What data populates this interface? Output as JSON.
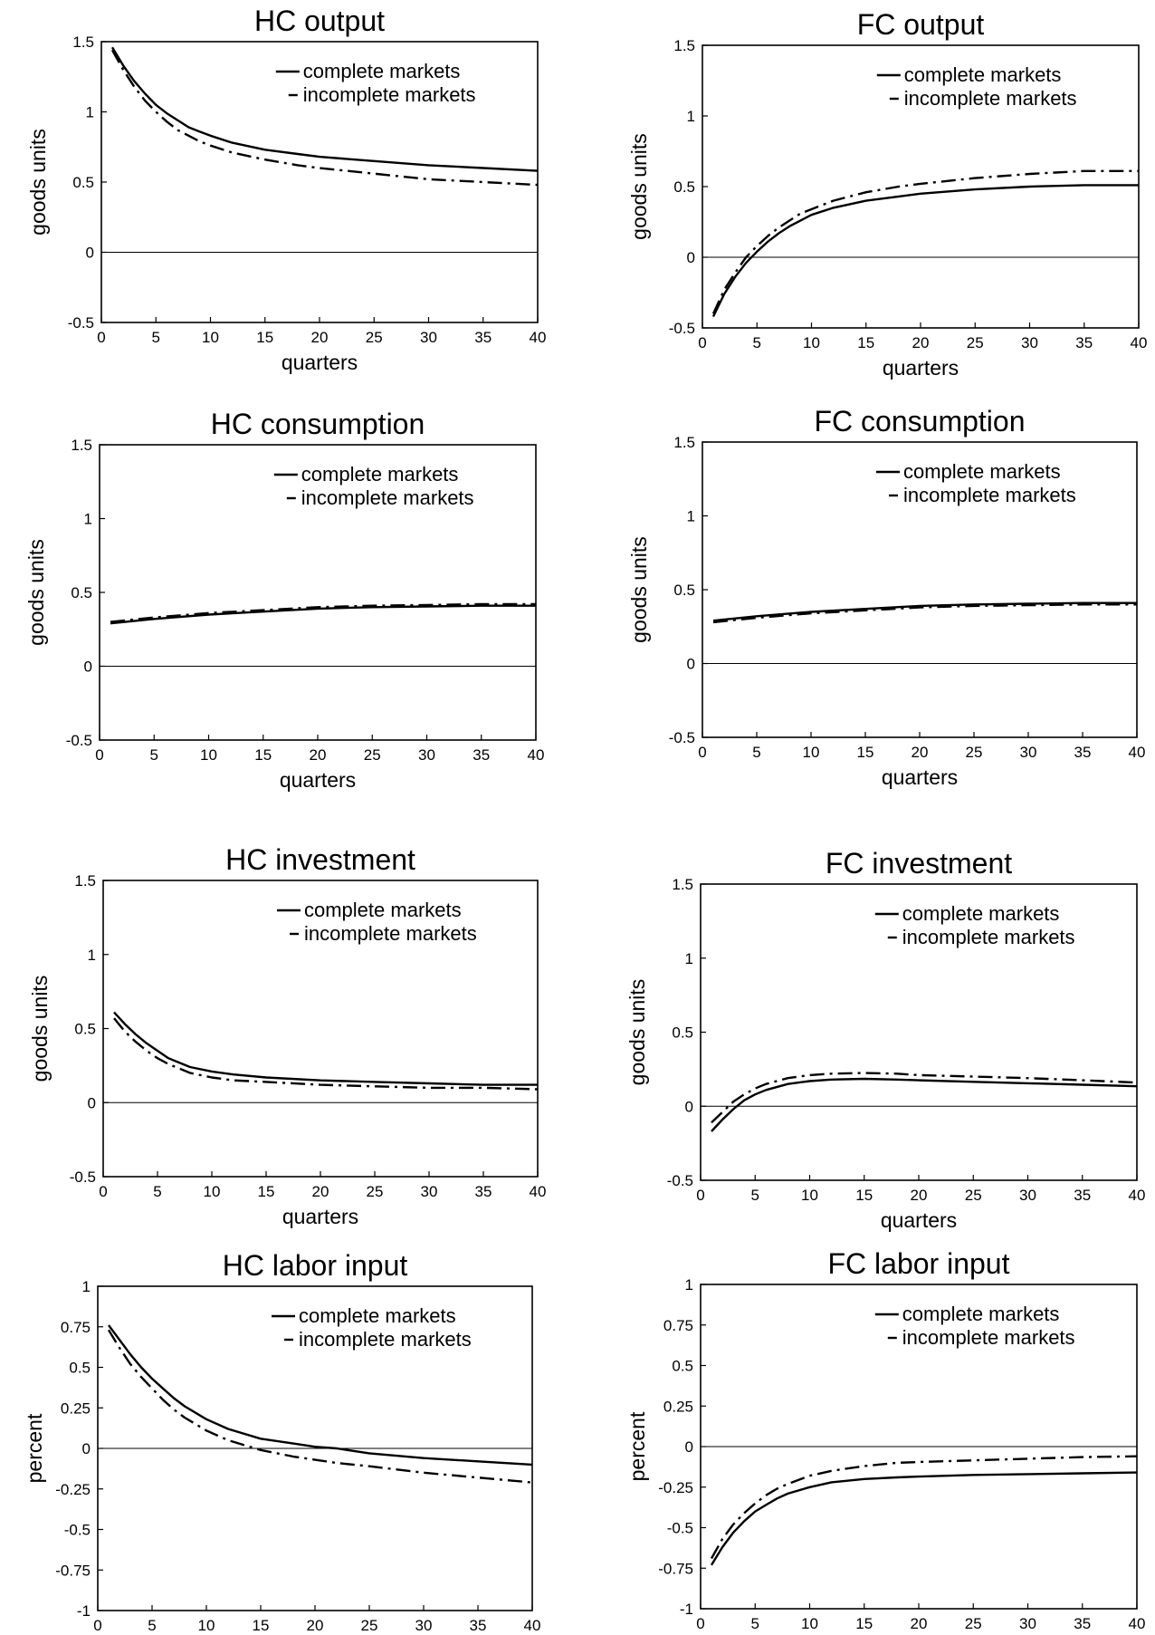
{
  "chart_data": [
    {
      "type": "line",
      "title": "HC output",
      "xlabel": "quarters",
      "ylabel": "goods units",
      "xlim": [
        0,
        40
      ],
      "ylim": [
        -0.5,
        1.5
      ],
      "xticks": [
        0,
        5,
        10,
        15,
        20,
        25,
        30,
        35,
        40
      ],
      "xtick_labels": [
        "0",
        "5",
        "10",
        "15",
        "20",
        "25",
        "30",
        "35",
        "40"
      ],
      "yticks": [
        -0.5,
        0,
        0.5,
        1,
        1.5
      ],
      "ytick_labels": [
        "-0.5",
        "0",
        "0.5",
        "1",
        "1.5"
      ],
      "zero_line": true,
      "grid": false,
      "legend_position": "top-right",
      "series": [
        {
          "name": "complete markets",
          "style": "solid",
          "x": [
            1,
            2,
            3,
            4,
            5,
            6,
            7,
            8,
            9,
            10,
            12,
            15,
            18,
            20,
            25,
            30,
            35,
            40
          ],
          "values": [
            1.46,
            1.33,
            1.22,
            1.13,
            1.05,
            0.99,
            0.94,
            0.89,
            0.86,
            0.83,
            0.78,
            0.73,
            0.7,
            0.68,
            0.65,
            0.62,
            0.6,
            0.58
          ]
        },
        {
          "name": "incomplete markets",
          "style": "dashdot",
          "x": [
            1,
            2,
            3,
            4,
            5,
            6,
            7,
            8,
            9,
            10,
            12,
            15,
            18,
            20,
            25,
            30,
            35,
            40
          ],
          "values": [
            1.44,
            1.3,
            1.18,
            1.08,
            1.0,
            0.93,
            0.87,
            0.83,
            0.79,
            0.76,
            0.71,
            0.66,
            0.62,
            0.6,
            0.56,
            0.52,
            0.5,
            0.48
          ]
        }
      ]
    },
    {
      "type": "line",
      "title": "FC output",
      "xlabel": "quarters",
      "ylabel": "goods units",
      "xlim": [
        0,
        40
      ],
      "ylim": [
        -0.5,
        1.5
      ],
      "xticks": [
        0,
        5,
        10,
        15,
        20,
        25,
        30,
        35,
        40
      ],
      "xtick_labels": [
        "0",
        "5",
        "10",
        "15",
        "20",
        "25",
        "30",
        "35",
        "40"
      ],
      "yticks": [
        -0.5,
        0,
        0.5,
        1,
        1.5
      ],
      "ytick_labels": [
        "-0.5",
        "0",
        "0.5",
        "1",
        "1.5"
      ],
      "zero_line": true,
      "grid": false,
      "legend_position": "top-right",
      "series": [
        {
          "name": "complete markets",
          "style": "solid",
          "x": [
            1,
            2,
            3,
            4,
            5,
            6,
            7,
            8,
            9,
            10,
            12,
            15,
            18,
            20,
            25,
            30,
            35,
            40
          ],
          "values": [
            -0.42,
            -0.26,
            -0.14,
            -0.04,
            0.04,
            0.11,
            0.17,
            0.22,
            0.26,
            0.3,
            0.35,
            0.4,
            0.43,
            0.45,
            0.48,
            0.5,
            0.51,
            0.51
          ]
        },
        {
          "name": "incomplete markets",
          "style": "dashdot",
          "x": [
            1,
            2,
            3,
            4,
            5,
            6,
            7,
            8,
            9,
            10,
            12,
            15,
            18,
            20,
            25,
            30,
            35,
            40
          ],
          "values": [
            -0.4,
            -0.23,
            -0.11,
            0.0,
            0.08,
            0.15,
            0.21,
            0.26,
            0.31,
            0.34,
            0.4,
            0.46,
            0.5,
            0.52,
            0.56,
            0.59,
            0.61,
            0.61
          ]
        }
      ]
    },
    {
      "type": "line",
      "title": "HC consumption",
      "xlabel": "quarters",
      "ylabel": "goods units",
      "xlim": [
        0,
        40
      ],
      "ylim": [
        -0.5,
        1.5
      ],
      "xticks": [
        0,
        5,
        10,
        15,
        20,
        25,
        30,
        35,
        40
      ],
      "xtick_labels": [
        "0",
        "5",
        "10",
        "15",
        "20",
        "25",
        "30",
        "35",
        "40"
      ],
      "yticks": [
        -0.5,
        0,
        0.5,
        1,
        1.5
      ],
      "ytick_labels": [
        "-0.5",
        "0",
        "0.5",
        "1",
        "1.5"
      ],
      "zero_line": true,
      "grid": false,
      "legend_position": "top-right",
      "series": [
        {
          "name": "complete markets",
          "style": "solid",
          "x": [
            1,
            5,
            10,
            15,
            20,
            25,
            30,
            35,
            40
          ],
          "values": [
            0.29,
            0.32,
            0.35,
            0.37,
            0.39,
            0.4,
            0.405,
            0.41,
            0.41
          ]
        },
        {
          "name": "incomplete markets",
          "style": "dashdot",
          "x": [
            1,
            5,
            10,
            15,
            20,
            25,
            30,
            35,
            40
          ],
          "values": [
            0.3,
            0.33,
            0.36,
            0.38,
            0.4,
            0.41,
            0.415,
            0.42,
            0.42
          ]
        }
      ]
    },
    {
      "type": "line",
      "title": "FC consumption",
      "xlabel": "quarters",
      "ylabel": "goods units",
      "xlim": [
        0,
        40
      ],
      "ylim": [
        -0.5,
        1.5
      ],
      "xticks": [
        0,
        5,
        10,
        15,
        20,
        25,
        30,
        35,
        40
      ],
      "xtick_labels": [
        "0",
        "5",
        "10",
        "15",
        "20",
        "25",
        "30",
        "35",
        "40"
      ],
      "yticks": [
        -0.5,
        0,
        0.5,
        1,
        1.5
      ],
      "ytick_labels": [
        "-0.5",
        "0",
        "0.5",
        "1",
        "1.5"
      ],
      "zero_line": true,
      "grid": false,
      "legend_position": "top-right",
      "series": [
        {
          "name": "complete markets",
          "style": "solid",
          "x": [
            1,
            5,
            10,
            15,
            20,
            25,
            30,
            35,
            40
          ],
          "values": [
            0.29,
            0.32,
            0.35,
            0.37,
            0.39,
            0.4,
            0.405,
            0.41,
            0.41
          ]
        },
        {
          "name": "incomplete markets",
          "style": "dashdot",
          "x": [
            1,
            5,
            10,
            15,
            20,
            25,
            30,
            35,
            40
          ],
          "values": [
            0.28,
            0.31,
            0.34,
            0.36,
            0.38,
            0.39,
            0.395,
            0.4,
            0.4
          ]
        }
      ]
    },
    {
      "type": "line",
      "title": "HC investment",
      "xlabel": "quarters",
      "ylabel": "goods units",
      "xlim": [
        0,
        40
      ],
      "ylim": [
        -0.5,
        1.5
      ],
      "xticks": [
        0,
        5,
        10,
        15,
        20,
        25,
        30,
        35,
        40
      ],
      "xtick_labels": [
        "0",
        "5",
        "10",
        "15",
        "20",
        "25",
        "30",
        "35",
        "40"
      ],
      "yticks": [
        -0.5,
        0,
        0.5,
        1,
        1.5
      ],
      "ytick_labels": [
        "-0.5",
        "0",
        "0.5",
        "1",
        "1.5"
      ],
      "zero_line": true,
      "grid": false,
      "legend_position": "top-right",
      "series": [
        {
          "name": "complete markets",
          "style": "solid",
          "x": [
            1,
            2,
            3,
            4,
            5,
            6,
            7,
            8,
            10,
            12,
            15,
            20,
            25,
            30,
            35,
            40
          ],
          "values": [
            0.61,
            0.53,
            0.46,
            0.4,
            0.35,
            0.3,
            0.27,
            0.24,
            0.21,
            0.19,
            0.17,
            0.15,
            0.14,
            0.13,
            0.12,
            0.12
          ]
        },
        {
          "name": "incomplete markets",
          "style": "dashdot",
          "x": [
            1,
            2,
            3,
            4,
            5,
            6,
            7,
            8,
            10,
            12,
            15,
            20,
            25,
            30,
            35,
            40
          ],
          "values": [
            0.57,
            0.48,
            0.41,
            0.35,
            0.3,
            0.26,
            0.23,
            0.2,
            0.17,
            0.15,
            0.14,
            0.12,
            0.11,
            0.1,
            0.1,
            0.09
          ]
        }
      ]
    },
    {
      "type": "line",
      "title": "FC investment",
      "xlabel": "quarters",
      "ylabel": "goods units",
      "xlim": [
        0,
        40
      ],
      "ylim": [
        -0.5,
        1.5
      ],
      "xticks": [
        0,
        5,
        10,
        15,
        20,
        25,
        30,
        35,
        40
      ],
      "xtick_labels": [
        "0",
        "5",
        "10",
        "15",
        "20",
        "25",
        "30",
        "35",
        "40"
      ],
      "yticks": [
        -0.5,
        0,
        0.5,
        1,
        1.5
      ],
      "ytick_labels": [
        "-0.5",
        "0",
        "0.5",
        "1",
        "1.5"
      ],
      "zero_line": true,
      "grid": false,
      "legend_position": "top-right",
      "series": [
        {
          "name": "complete markets",
          "style": "solid",
          "x": [
            1,
            2,
            3,
            4,
            5,
            6,
            8,
            10,
            12,
            15,
            18,
            20,
            25,
            30,
            35,
            40
          ],
          "values": [
            -0.17,
            -0.09,
            -0.02,
            0.04,
            0.08,
            0.11,
            0.15,
            0.17,
            0.18,
            0.185,
            0.18,
            0.175,
            0.165,
            0.155,
            0.145,
            0.135
          ]
        },
        {
          "name": "incomplete markets",
          "style": "dashdot",
          "x": [
            1,
            2,
            3,
            4,
            5,
            6,
            8,
            10,
            12,
            15,
            18,
            20,
            25,
            30,
            35,
            40
          ],
          "values": [
            -0.11,
            -0.04,
            0.03,
            0.08,
            0.12,
            0.15,
            0.19,
            0.21,
            0.22,
            0.225,
            0.22,
            0.21,
            0.2,
            0.19,
            0.175,
            0.16
          ]
        }
      ]
    },
    {
      "type": "line",
      "title": "HC labor input",
      "xlabel": "quarters",
      "ylabel": "percent",
      "xlim": [
        0,
        40
      ],
      "ylim": [
        -1,
        1
      ],
      "xticks": [
        0,
        5,
        10,
        15,
        20,
        25,
        30,
        35,
        40
      ],
      "xtick_labels": [
        "0",
        "5",
        "10",
        "15",
        "20",
        "25",
        "30",
        "35",
        "40"
      ],
      "yticks": [
        -1,
        -0.75,
        -0.5,
        -0.25,
        0,
        0.25,
        0.5,
        0.75,
        1
      ],
      "ytick_labels": [
        "-1",
        "-0.75",
        "-0.5",
        "-0.25",
        "0",
        "0.25",
        "0.5",
        "0.75",
        "1"
      ],
      "zero_line": true,
      "grid": false,
      "legend_position": "top-right",
      "series": [
        {
          "name": "complete markets",
          "style": "solid",
          "x": [
            1,
            2,
            3,
            4,
            5,
            6,
            7,
            8,
            10,
            12,
            15,
            18,
            20,
            22,
            25,
            30,
            35,
            40
          ],
          "values": [
            0.76,
            0.67,
            0.58,
            0.5,
            0.43,
            0.37,
            0.31,
            0.26,
            0.18,
            0.12,
            0.06,
            0.03,
            0.01,
            0.0,
            -0.03,
            -0.06,
            -0.08,
            -0.1
          ]
        },
        {
          "name": "incomplete markets",
          "style": "dashdot",
          "x": [
            1,
            2,
            3,
            4,
            5,
            6,
            7,
            8,
            10,
            12,
            15,
            18,
            20,
            22,
            25,
            30,
            35,
            40
          ],
          "values": [
            0.73,
            0.62,
            0.52,
            0.44,
            0.37,
            0.3,
            0.24,
            0.19,
            0.11,
            0.05,
            -0.01,
            -0.05,
            -0.07,
            -0.09,
            -0.11,
            -0.15,
            -0.18,
            -0.21
          ]
        }
      ]
    },
    {
      "type": "line",
      "title": "FC labor input",
      "xlabel": "quarters",
      "ylabel": "percent",
      "xlim": [
        0,
        40
      ],
      "ylim": [
        -1,
        1
      ],
      "xticks": [
        0,
        5,
        10,
        15,
        20,
        25,
        30,
        35,
        40
      ],
      "xtick_labels": [
        "0",
        "5",
        "10",
        "15",
        "20",
        "25",
        "30",
        "35",
        "40"
      ],
      "yticks": [
        -1,
        -0.75,
        -0.5,
        -0.25,
        0,
        0.25,
        0.5,
        0.75,
        1
      ],
      "ytick_labels": [
        "-1",
        "-0.75",
        "-0.5",
        "-0.25",
        "0",
        "0.25",
        "0.5",
        "0.75",
        "1"
      ],
      "zero_line": true,
      "grid": false,
      "legend_position": "top-right",
      "series": [
        {
          "name": "complete markets",
          "style": "solid",
          "x": [
            1,
            2,
            3,
            4,
            5,
            6,
            7,
            8,
            10,
            12,
            15,
            18,
            20,
            25,
            30,
            35,
            40
          ],
          "values": [
            -0.73,
            -0.62,
            -0.53,
            -0.46,
            -0.4,
            -0.36,
            -0.32,
            -0.29,
            -0.25,
            -0.22,
            -0.2,
            -0.19,
            -0.185,
            -0.175,
            -0.17,
            -0.165,
            -0.16
          ]
        },
        {
          "name": "incomplete markets",
          "style": "dashdot",
          "x": [
            1,
            2,
            3,
            4,
            5,
            6,
            7,
            8,
            10,
            12,
            15,
            18,
            20,
            25,
            30,
            35,
            40
          ],
          "values": [
            -0.69,
            -0.57,
            -0.48,
            -0.41,
            -0.35,
            -0.3,
            -0.26,
            -0.23,
            -0.18,
            -0.15,
            -0.12,
            -0.1,
            -0.095,
            -0.085,
            -0.075,
            -0.065,
            -0.06
          ]
        }
      ]
    }
  ]
}
